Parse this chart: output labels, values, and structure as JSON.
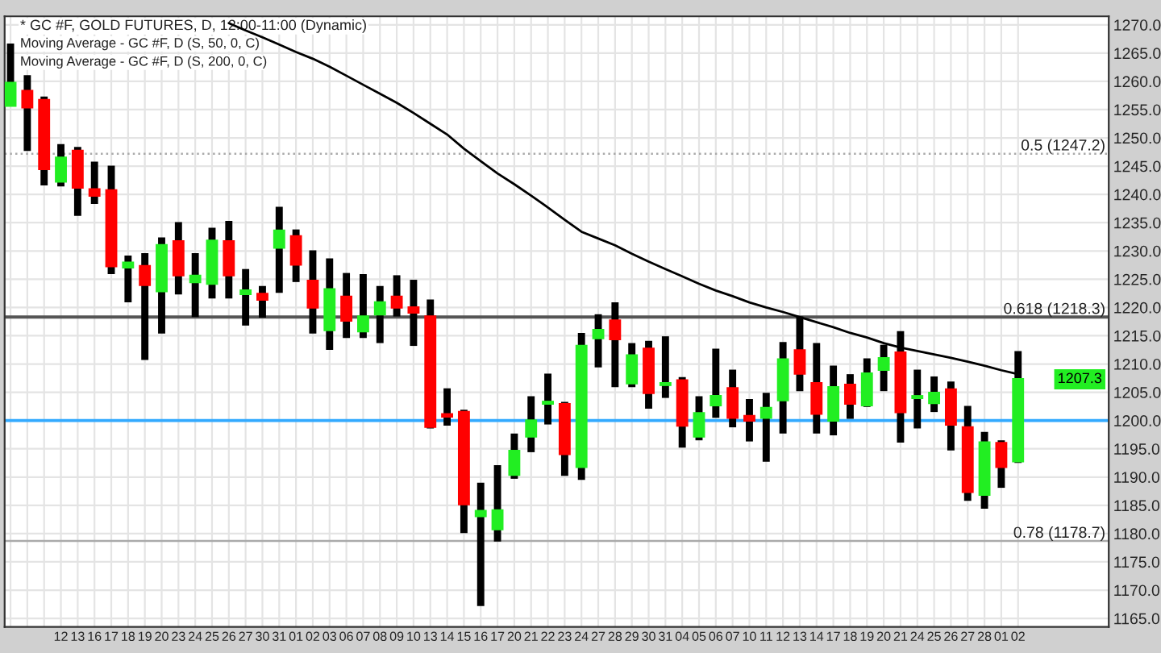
{
  "chart_data": {
    "type": "candlestick",
    "title": "* GC #F, GOLD FUTURES, D, 12:00-11:00 (Dynamic)",
    "annotations": [
      "Moving Average - GC #F, D (S, 50, 0, C)",
      "Moving Average - GC #F, D (S, 200, 0, C)",
      "1207.3"
    ],
    "categories": [
      null,
      null,
      null,
      "12",
      "13",
      "16",
      "17",
      "18",
      "19",
      "20",
      "23",
      "24",
      "25",
      "26",
      "27",
      "30",
      "31",
      "01",
      "02",
      "03",
      "06",
      "07",
      "08",
      "09",
      "10",
      "13",
      "14",
      "15",
      "16",
      "17",
      "20",
      "21",
      "22",
      "23",
      "24",
      "27",
      "28",
      "29",
      "30",
      "31",
      "04",
      "05",
      "06",
      "07",
      "10",
      "11",
      "12",
      "13",
      "14",
      "17",
      "18",
      "19",
      "20",
      "21",
      "24",
      "25",
      "26",
      "27",
      "28",
      "01",
      "02"
    ],
    "ohlc": [
      [
        1255.7,
        1266.7,
        1255.7,
        1259.7
      ],
      [
        1258.3,
        1261.1,
        1247.7,
        1255.4
      ],
      [
        1256.7,
        1257.3,
        1241.6,
        1244.5
      ],
      [
        1242.3,
        1248.9,
        1241.4,
        1246.5
      ],
      [
        1247.7,
        1248.4,
        1236.2,
        1241.2
      ],
      [
        1240.9,
        1245.8,
        1238.3,
        1239.8
      ],
      [
        1240.7,
        1245.1,
        1225.9,
        1227.3
      ],
      [
        1227.1,
        1229.2,
        1220.9,
        1227.9
      ],
      [
        1227.3,
        1229.6,
        1210.7,
        1224.0
      ],
      [
        1222.9,
        1232.4,
        1215.4,
        1231.0
      ],
      [
        1231.7,
        1235.1,
        1222.3,
        1225.7
      ],
      [
        1224.5,
        1229.6,
        1218.3,
        1225.6
      ],
      [
        1224.2,
        1234.1,
        1221.6,
        1231.8
      ],
      [
        1231.7,
        1235.3,
        1221.6,
        1225.7
      ],
      [
        1222.4,
        1226.8,
        1216.8,
        1223.0
      ],
      [
        1222.4,
        1223.8,
        1218.2,
        1221.4
      ],
      [
        1230.6,
        1237.8,
        1222.6,
        1233.6
      ],
      [
        1232.6,
        1233.8,
        1224.5,
        1227.6
      ],
      [
        1224.7,
        1230.1,
        1215.4,
        1220.0
      ],
      [
        1216.0,
        1228.7,
        1212.5,
        1223.2
      ],
      [
        1221.9,
        1226.1,
        1214.6,
        1217.7
      ],
      [
        1215.8,
        1225.9,
        1214.6,
        1218.4
      ],
      [
        1218.8,
        1223.8,
        1213.7,
        1220.9
      ],
      [
        1221.9,
        1225.7,
        1218.4,
        1220.0
      ],
      [
        1220.0,
        1224.9,
        1213.2,
        1219.1
      ],
      [
        1218.4,
        1221.4,
        1198.6,
        1198.9
      ],
      [
        1201.1,
        1205.7,
        1199.1,
        1200.7
      ],
      [
        1201.5,
        1201.9,
        1180.1,
        1185.2
      ],
      [
        1183.1,
        1189.0,
        1167.2,
        1184.0
      ],
      [
        1180.8,
        1192.1,
        1178.6,
        1184.1
      ],
      [
        1190.4,
        1197.7,
        1189.7,
        1194.6
      ],
      [
        1197.2,
        1204.3,
        1194.4,
        1200.0
      ],
      [
        1203.0,
        1208.3,
        1199.3,
        1203.3
      ],
      [
        1202.9,
        1203.3,
        1190.2,
        1194.1
      ],
      [
        1191.8,
        1215.5,
        1189.5,
        1213.2
      ],
      [
        1214.6,
        1218.8,
        1209.4,
        1216.0
      ],
      [
        1217.7,
        1220.9,
        1205.9,
        1214.4
      ],
      [
        1206.6,
        1213.7,
        1205.9,
        1211.5
      ],
      [
        1212.7,
        1214.1,
        1202.1,
        1204.9
      ],
      [
        1206.3,
        1214.9,
        1204.0,
        1206.6
      ],
      [
        1207.1,
        1207.7,
        1195.2,
        1199.1
      ],
      [
        1197.2,
        1204.3,
        1196.5,
        1201.3
      ],
      [
        1202.7,
        1212.7,
        1200.5,
        1204.3
      ],
      [
        1205.7,
        1209.0,
        1198.8,
        1200.5
      ],
      [
        1200.8,
        1203.8,
        1196.3,
        1200.0
      ],
      [
        1200.5,
        1204.9,
        1192.7,
        1202.2
      ],
      [
        1203.6,
        1213.9,
        1197.7,
        1210.8
      ],
      [
        1212.4,
        1218.4,
        1205.2,
        1208.3
      ],
      [
        1206.6,
        1213.7,
        1197.7,
        1201.2
      ],
      [
        1200.0,
        1209.7,
        1197.4,
        1205.9
      ],
      [
        1206.3,
        1208.2,
        1200.3,
        1203.0
      ],
      [
        1202.7,
        1211.0,
        1202.4,
        1208.3
      ],
      [
        1209.0,
        1213.4,
        1205.2,
        1211.0
      ],
      [
        1212.0,
        1215.8,
        1196.1,
        1201.5
      ],
      [
        1204.0,
        1209.0,
        1198.6,
        1204.3
      ],
      [
        1203.1,
        1207.8,
        1201.5,
        1204.9
      ],
      [
        1205.5,
        1206.9,
        1194.7,
        1199.3
      ],
      [
        1198.8,
        1202.6,
        1185.8,
        1187.4
      ],
      [
        1186.9,
        1198.0,
        1184.4,
        1196.1
      ],
      [
        1196.0,
        1196.5,
        1188.1,
        1191.8
      ],
      [
        1192.8,
        1212.3,
        1192.5,
        1207.3
      ]
    ],
    "colors": [
      "#22ee22",
      "#ff0000",
      "#ff0000",
      "#22ee22",
      "#ff0000",
      "#ff0000",
      "#ff0000",
      "#22ee22",
      "#ff0000",
      "#22ee22",
      "#ff0000",
      "#22ee22",
      "#22ee22",
      "#ff0000",
      "#22ee22",
      "#ff0000",
      "#22ee22",
      "#ff0000",
      "#ff0000",
      "#22ee22",
      "#ff0000",
      "#22ee22",
      "#22ee22",
      "#ff0000",
      "#ff0000",
      "#ff0000",
      "#ff0000",
      "#ff0000",
      "#22ee22",
      "#22ee22",
      "#22ee22",
      "#22ee22",
      "#22ee22",
      "#ff0000",
      "#22ee22",
      "#22ee22",
      "#ff0000",
      "#22ee22",
      "#ff0000",
      "#22ee22",
      "#ff0000",
      "#22ee22",
      "#22ee22",
      "#ff0000",
      "#ff0000",
      "#22ee22",
      "#22ee22",
      "#ff0000",
      "#ff0000",
      "#22ee22",
      "#ff0000",
      "#22ee22",
      "#22ee22",
      "#ff0000",
      "#22ee22",
      "#22ee22",
      "#ff0000",
      "#ff0000",
      "#22ee22",
      "#ff0000",
      "#22ee22"
    ],
    "series": [
      {
        "type": "line",
        "color": "#000000",
        "values": [
          null,
          null,
          null,
          null,
          null,
          null,
          null,
          null,
          null,
          null,
          null,
          null,
          null,
          1270.3,
          1269.0,
          1267.8,
          1266.5,
          1265.2,
          1264.0,
          1262.6,
          1261.0,
          1259.4,
          1257.8,
          1256.2,
          1254.4,
          1252.5,
          1250.6,
          1248.1,
          1245.9,
          1243.7,
          1241.8,
          1239.8,
          1237.7,
          1235.5,
          1233.4,
          1232.2,
          1231.0,
          1229.5,
          1228.1,
          1226.8,
          1225.5,
          1224.2,
          1223.0,
          1222.0,
          1220.9,
          1220.0,
          1219.2,
          1218.3,
          1217.4,
          1216.5,
          1215.5,
          1214.7,
          1213.7,
          1212.9,
          1212.3,
          1211.7,
          1211.1,
          1210.4,
          1209.7,
          1208.9,
          1208.2
        ]
      }
    ],
    "ref_lines": [
      {
        "axis": "y",
        "value": 1247.2,
        "label": "0.5 (1247.2)",
        "color": "#aaaaaa",
        "line_style": "dotted"
      },
      {
        "axis": "y",
        "value": 1218.3,
        "label": "0.618 (1218.3)",
        "color": "#555555",
        "line_style": "solid"
      },
      {
        "axis": "y",
        "value": 1200,
        "label": null,
        "color": "#33aaff",
        "line_style": "solid"
      },
      {
        "axis": "y",
        "value": 1178.7,
        "label": "0.78 (1178.7)",
        "color": "#aaaaaa",
        "line_style": "solid"
      }
    ],
    "ylim": [
      1163.5,
      1271.5
    ],
    "yticks": [
      {
        "value": 1165,
        "label": "1165.0"
      },
      {
        "value": 1170,
        "label": "1170.0"
      },
      {
        "value": 1175,
        "label": "1175.0"
      },
      {
        "value": 1180,
        "label": "1180.0"
      },
      {
        "value": 1185,
        "label": "1185.0"
      },
      {
        "value": 1190,
        "label": "1190.0"
      },
      {
        "value": 1195,
        "label": "1195.0"
      },
      {
        "value": 1200,
        "label": "1200.0"
      },
      {
        "value": 1205,
        "label": "1205.0"
      },
      {
        "value": 1210,
        "label": "1210.0"
      },
      {
        "value": 1215,
        "label": "1215.0"
      },
      {
        "value": 1220,
        "label": "1220.0"
      },
      {
        "value": 1225,
        "label": "1225.0"
      },
      {
        "value": 1230,
        "label": "1230.0"
      },
      {
        "value": 1235,
        "label": "1235.0"
      },
      {
        "value": 1240,
        "label": "1240.0"
      },
      {
        "value": 1245,
        "label": "1245.0"
      },
      {
        "value": 1250,
        "label": "1250.0"
      },
      {
        "value": 1255,
        "label": "1255.0"
      },
      {
        "value": 1260,
        "label": "1260.0"
      },
      {
        "value": 1265,
        "label": "1265.0"
      },
      {
        "value": 1270,
        "label": "1270.0"
      }
    ],
    "grid": true,
    "legend": false
  }
}
